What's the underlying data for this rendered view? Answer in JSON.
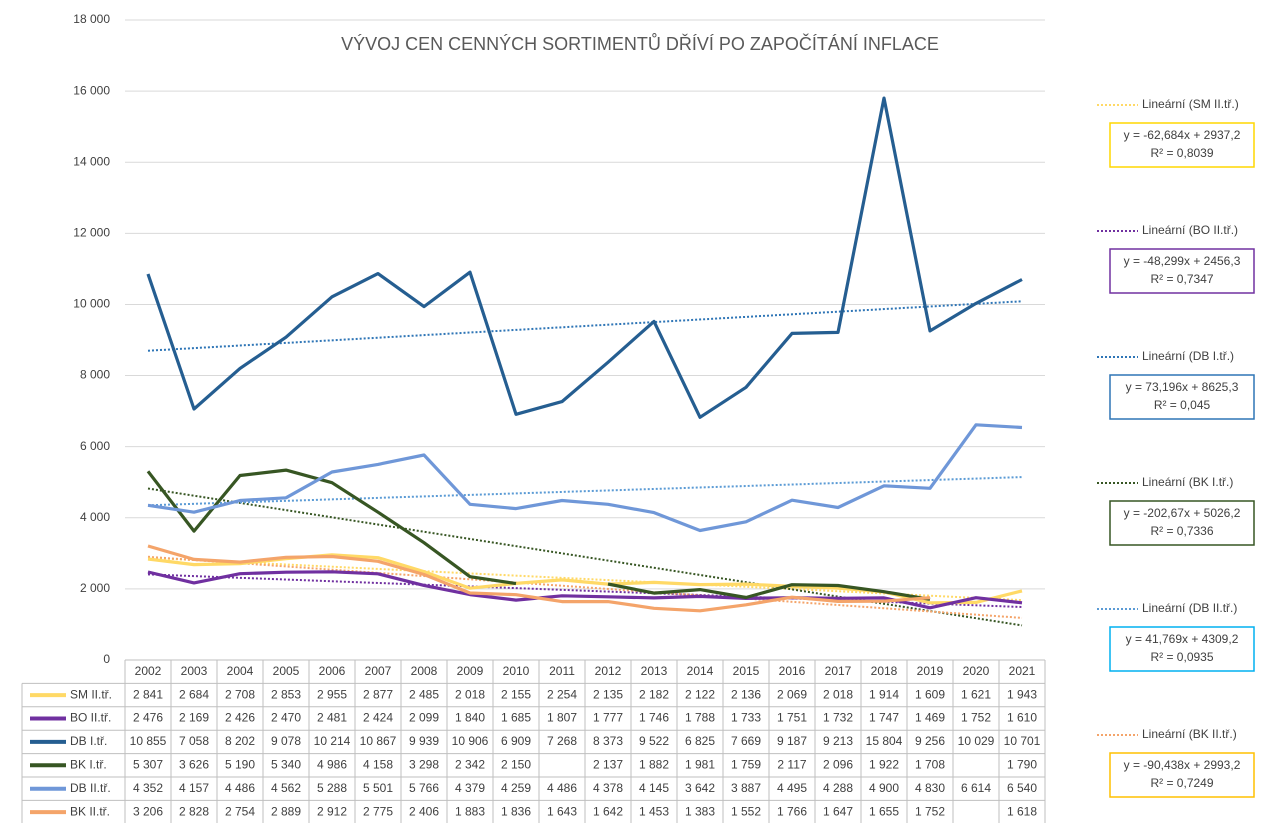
{
  "chart_data": {
    "type": "line",
    "title": "VÝVOJ CEN CENNÝCH SORTIMENTŮ DŘÍVÍ PO ZAPOČÍTÁNÍ INFLACE",
    "categories": [
      "2002",
      "2003",
      "2004",
      "2005",
      "2006",
      "2007",
      "2008",
      "2009",
      "2010",
      "2011",
      "2012",
      "2013",
      "2014",
      "2015",
      "2016",
      "2017",
      "2018",
      "2019",
      "2020",
      "2021"
    ],
    "ylim": [
      0,
      18000
    ],
    "yticks": [
      {
        "value": 0,
        "label": "0"
      },
      {
        "value": 2000,
        "label": "2 000"
      },
      {
        "value": 4000,
        "label": "4 000"
      },
      {
        "value": 6000,
        "label": "6 000"
      },
      {
        "value": 8000,
        "label": "8 000"
      },
      {
        "value": 10000,
        "label": "10 000"
      },
      {
        "value": 12000,
        "label": "12 000"
      },
      {
        "value": 14000,
        "label": "14 000"
      },
      {
        "value": 16000,
        "label": "16 000"
      },
      {
        "value": 18000,
        "label": "18 000"
      }
    ],
    "grid": true,
    "series": [
      {
        "name": "SM II.tř.",
        "color": "#ffd966",
        "values": [
          2841,
          2684,
          2708,
          2853,
          2955,
          2877,
          2485,
          2018,
          2155,
          2254,
          2135,
          2182,
          2122,
          2136,
          2069,
          2018,
          1914,
          1609,
          1621,
          1943
        ],
        "value_labels": [
          "2 841",
          "2 684",
          "2 708",
          "2 853",
          "2 955",
          "2 877",
          "2 485",
          "2 018",
          "2 155",
          "2 254",
          "2 135",
          "2 182",
          "2 122",
          "2 136",
          "2 069",
          "2 018",
          "1 914",
          "1 609",
          "1 621",
          "1 943"
        ],
        "trend": {
          "label": "Lineární (SM II.tř.)",
          "color": "#ffd966",
          "box_color": "#ffd700",
          "slope": -62.684,
          "intercept": 2937.2,
          "equation": "y = -62,684x + 2937,2",
          "r2": 0.8039,
          "r2_label": "R² = 0,8039"
        }
      },
      {
        "name": "BO II.tř.",
        "color": "#7030a0",
        "values": [
          2476,
          2169,
          2426,
          2470,
          2481,
          2424,
          2099,
          1840,
          1685,
          1807,
          1777,
          1746,
          1788,
          1733,
          1751,
          1732,
          1747,
          1469,
          1752,
          1610
        ],
        "value_labels": [
          "2 476",
          "2 169",
          "2 426",
          "2 470",
          "2 481",
          "2 424",
          "2 099",
          "1 840",
          "1 685",
          "1 807",
          "1 777",
          "1 746",
          "1 788",
          "1 733",
          "1 751",
          "1 732",
          "1 747",
          "1 469",
          "1 752",
          "1 610"
        ],
        "trend": {
          "label": "Lineární (BO II.tř.)",
          "color": "#7030a0",
          "box_color": "#7030a0",
          "slope": -48.299,
          "intercept": 2456.3,
          "equation": "y = -48,299x + 2456,3",
          "r2": 0.7347,
          "r2_label": "R² = 0,7347"
        }
      },
      {
        "name": "DB I.tř.",
        "color": "#255e91",
        "values": [
          10855,
          7058,
          8202,
          9078,
          10214,
          10867,
          9939,
          10906,
          6909,
          7268,
          8373,
          9522,
          6825,
          7669,
          9187,
          9213,
          15804,
          9256,
          10029,
          10701
        ],
        "value_labels": [
          "10 855",
          "7 058",
          "8 202",
          "9 078",
          "10 214",
          "10 867",
          "9 939",
          "10 906",
          "6 909",
          "7 268",
          "8 373",
          "9 522",
          "6 825",
          "7 669",
          "9 187",
          "9 213",
          "15 804",
          "9 256",
          "10 029",
          "10 701"
        ],
        "trend": {
          "label": "Lineární (DB I.tř.)",
          "color": "#2e75b6",
          "box_color": "#2e75b6",
          "slope": 73.196,
          "intercept": 8625.3,
          "equation": "y = 73,196x + 8625,3",
          "r2": 0.045,
          "r2_label": "R² = 0,045"
        }
      },
      {
        "name": "BK I.tř.",
        "color": "#375623",
        "values": [
          5307,
          3626,
          5190,
          5340,
          4986,
          4158,
          3298,
          2342,
          2150,
          null,
          2137,
          1882,
          1981,
          1759,
          2117,
          2096,
          1922,
          1708,
          null,
          1790
        ],
        "value_labels": [
          "5 307",
          "3 626",
          "5 190",
          "5 340",
          "4 986",
          "4 158",
          "3 298",
          "2 342",
          "2 150",
          null,
          "2 137",
          "1 882",
          "1 981",
          "1 759",
          "2 117",
          "2 096",
          "1 922",
          "1 708",
          null,
          "1 790"
        ],
        "trend": {
          "label": "Lineární (BK I.tř.)",
          "color": "#375623",
          "box_color": "#375623",
          "slope": -202.67,
          "intercept": 5026.2,
          "equation": "y = -202,67x + 5026,2",
          "r2": 0.7336,
          "r2_label": "R² = 0,7336"
        }
      },
      {
        "name": "DB II.tř.",
        "color": "#6f97d8",
        "values": [
          4352,
          4157,
          4486,
          4562,
          5288,
          5501,
          5766,
          4379,
          4259,
          4486,
          4378,
          4145,
          3642,
          3887,
          4495,
          4288,
          4900,
          4830,
          6614,
          6540
        ],
        "value_labels": [
          "4 352",
          "4 157",
          "4 486",
          "4 562",
          "5 288",
          "5 501",
          "5 766",
          "4 379",
          "4 259",
          "4 486",
          "4 378",
          "4 145",
          "3 642",
          "3 887",
          "4 495",
          "4 288",
          "4 900",
          "4 830",
          "6 614",
          "6 540"
        ],
        "trend": {
          "label": "Lineární (DB II.tř.)",
          "color": "#5b9bd5",
          "box_color": "#00b0f0",
          "slope": 41.769,
          "intercept": 4309.2,
          "equation": "y = 41,769x + 4309,2",
          "r2": 0.0935,
          "r2_label": "R² = 0,0935"
        }
      },
      {
        "name": "BK II.tř.",
        "color": "#f4a46a",
        "values": [
          3206,
          2828,
          2754,
          2889,
          2912,
          2775,
          2406,
          1883,
          1836,
          1643,
          1642,
          1453,
          1383,
          1552,
          1766,
          1647,
          1655,
          1752,
          null,
          1618
        ],
        "value_labels": [
          "3 206",
          "2 828",
          "2 754",
          "2 889",
          "2 912",
          "2 775",
          "2 406",
          "1 883",
          "1 836",
          "1 643",
          "1 642",
          "1 453",
          "1 383",
          "1 552",
          "1 766",
          "1 647",
          "1 655",
          "1 752",
          null,
          "1 618"
        ],
        "trend": {
          "label": "Lineární (BK II.tř.)",
          "color": "#f4a46a",
          "box_color": "#ffc000",
          "slope": -90.438,
          "intercept": 2993.2,
          "equation": "y = -90,438x + 2993,2",
          "r2": 0.7249,
          "r2_label": "R² = 0,7249"
        }
      }
    ]
  }
}
